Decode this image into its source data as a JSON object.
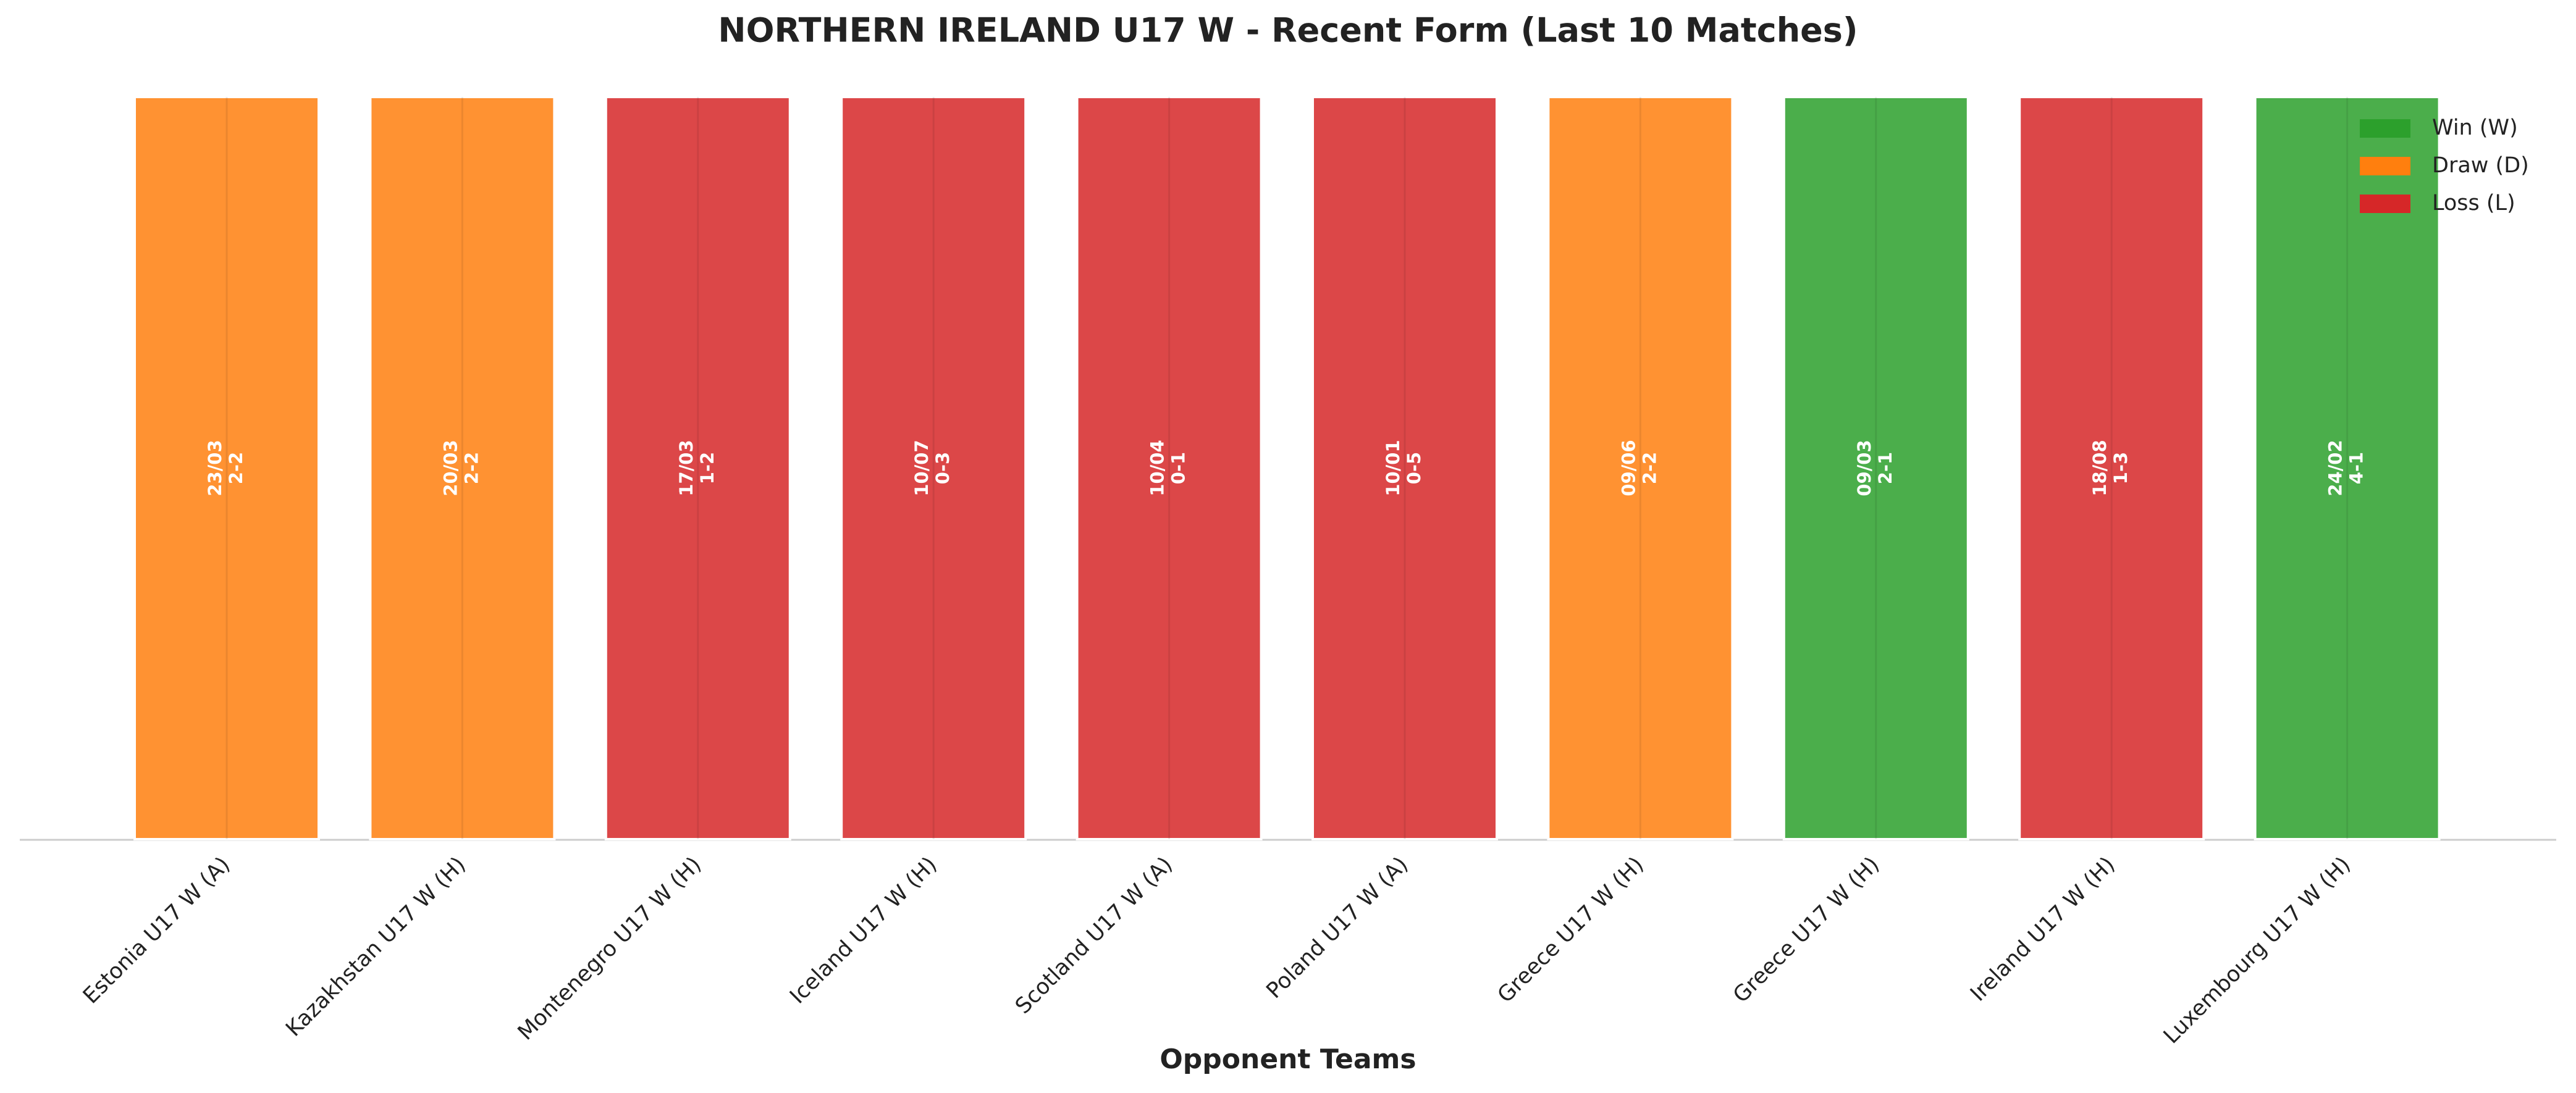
{
  "chart_data": {
    "type": "bar",
    "title": "NORTHERN IRELAND U17 W - Recent Form (Last 10 Matches)",
    "xlabel": "Opponent Teams",
    "categories": [
      "Estonia U17 W (A)",
      "Kazakhstan U17 W (H)",
      "Montenegro U17 W (H)",
      "Iceland U17 W (H)",
      "Scotland U17 W (A)",
      "Poland U17 W (A)",
      "Greece U17 W (H)",
      "Greece U17 W (H)",
      "Ireland U17 W (H)",
      "Luxembourg U17 W (H)"
    ],
    "values": [
      1,
      1,
      1,
      1,
      1,
      1,
      1,
      1,
      1,
      1
    ],
    "ylim": [
      0,
      1
    ],
    "colors": [
      "#ff7f0e",
      "#ff7f0e",
      "#d62728",
      "#d62728",
      "#d62728",
      "#d62728",
      "#ff7f0e",
      "#2ca02c",
      "#d62728",
      "#2ca02c"
    ],
    "annotations": [
      {
        "date": "23/03",
        "score": "2-2"
      },
      {
        "date": "20/03",
        "score": "2-2"
      },
      {
        "date": "17/03",
        "score": "1-2"
      },
      {
        "date": "10/07",
        "score": "0-3"
      },
      {
        "date": "10/04",
        "score": "0-1"
      },
      {
        "date": "10/01",
        "score": "0-5"
      },
      {
        "date": "09/06",
        "score": "2-2"
      },
      {
        "date": "09/03",
        "score": "2-1"
      },
      {
        "date": "18/08",
        "score": "1-3"
      },
      {
        "date": "24/02",
        "score": "4-1"
      }
    ],
    "legend": [
      {
        "name": "Win (W)",
        "color": "#2ca02c"
      },
      {
        "name": "Draw (D)",
        "color": "#ff7f0e"
      },
      {
        "name": "Loss (L)",
        "color": "#d62728"
      }
    ],
    "legend_position": "upper right",
    "grid": true
  }
}
